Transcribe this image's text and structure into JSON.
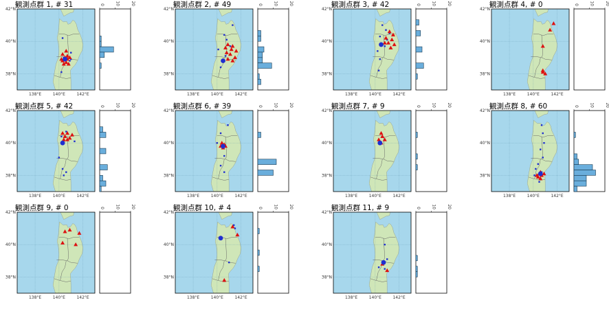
{
  "colors": {
    "ocean": "#a7d7ec",
    "land": "#cfe6b8",
    "border": "#666666",
    "station": "#1f2fd0",
    "event": "#dd1111",
    "hist_fill": "#6aaedc",
    "hist_edge": "#17384f"
  },
  "map_axes": {
    "lon_ticks": [
      "138°E",
      "140°E",
      "142°E"
    ],
    "lat_ticks": [
      "42°N",
      "40°N",
      "38°N"
    ]
  },
  "hist_axis": {
    "ticks": [
      "0",
      "10",
      "20"
    ],
    "range": [
      0,
      20
    ]
  },
  "chart_data": [
    {
      "type": "map+histogram",
      "title": "観測点群 1, # 31",
      "stations": [
        [
          140.3,
          40.2
        ],
        [
          140.2,
          38.1
        ],
        [
          140.6,
          39.4
        ],
        [
          140.9,
          38.8
        ],
        [
          140.4,
          39.0
        ],
        [
          141.0,
          39.3
        ],
        [
          141.0,
          38.9
        ]
      ],
      "events": [
        [
          140.3,
          39.2
        ],
        [
          140.5,
          39.0
        ],
        [
          140.7,
          39.1
        ],
        [
          140.2,
          38.9
        ],
        [
          140.6,
          38.7
        ],
        [
          140.9,
          39.0
        ],
        [
          140.3,
          38.8
        ],
        [
          140.6,
          39.4
        ],
        [
          140.8,
          38.6
        ],
        [
          140.4,
          38.6
        ],
        [
          140.7,
          38.9
        ]
      ],
      "centroid": [
        140.5,
        38.9
      ],
      "hist_bins": [
        0,
        0,
        0,
        0,
        0,
        1,
        1,
        9,
        3,
        0,
        1,
        0,
        0,
        0,
        0
      ]
    },
    {
      "type": "map+histogram",
      "title": "観測点群 2, # 49",
      "stations": [
        [
          141.3,
          41.0
        ],
        [
          140.6,
          40.4
        ],
        [
          140.8,
          40.1
        ],
        [
          140.1,
          39.5
        ],
        [
          140.7,
          39.1
        ],
        [
          140.3,
          38.4
        ],
        [
          141.1,
          39.7
        ]
      ],
      "events": [
        [
          140.9,
          39.8
        ],
        [
          141.3,
          39.7
        ],
        [
          141.6,
          39.4
        ],
        [
          140.8,
          39.3
        ],
        [
          141.1,
          39.2
        ],
        [
          141.5,
          39.0
        ],
        [
          140.9,
          38.9
        ],
        [
          141.3,
          38.8
        ],
        [
          140.7,
          39.6
        ],
        [
          141.2,
          39.5
        ]
      ],
      "centroid": [
        140.5,
        38.8
      ],
      "hist_bins": [
        0,
        0,
        0,
        0,
        2,
        2,
        0,
        4,
        3,
        3,
        9,
        0,
        1,
        2,
        0
      ]
    },
    {
      "type": "map+histogram",
      "title": "観測点群 3, # 42",
      "stations": [
        [
          140.6,
          41.0
        ],
        [
          140.9,
          40.7
        ],
        [
          141.2,
          40.5
        ],
        [
          140.4,
          40.3
        ],
        [
          141.0,
          40.1
        ],
        [
          140.2,
          39.4
        ],
        [
          140.4,
          38.9
        ],
        [
          140.3,
          38.2
        ],
        [
          140.8,
          39.7
        ]
      ],
      "events": [
        [
          141.2,
          40.6
        ],
        [
          141.5,
          40.4
        ],
        [
          140.9,
          40.2
        ],
        [
          141.4,
          40.1
        ],
        [
          141.6,
          39.8
        ],
        [
          141.1,
          39.9
        ],
        [
          140.8,
          39.9
        ],
        [
          141.3,
          39.6
        ]
      ],
      "centroid": [
        140.5,
        39.8
      ],
      "hist_bins": [
        0,
        0,
        2,
        0,
        3,
        0,
        0,
        4,
        0,
        0,
        5,
        0,
        1,
        0,
        0
      ]
    },
    {
      "type": "map+histogram",
      "title": "観測点群 4, # 0",
      "stations": [],
      "events": [
        [
          141.7,
          41.1
        ],
        [
          141.4,
          40.7
        ],
        [
          140.8,
          39.7
        ],
        [
          140.8,
          38.2
        ],
        [
          141.0,
          38.0
        ],
        [
          140.8,
          38.1
        ]
      ],
      "centroid": null,
      "hist_bins": [
        0,
        0,
        0,
        0,
        0,
        0,
        0,
        0,
        0,
        0,
        0,
        0,
        0,
        0,
        0
      ]
    },
    {
      "type": "map+histogram",
      "title": "観測点群 5, # 42",
      "stations": [
        [
          140.2,
          40.4
        ],
        [
          140.6,
          40.7
        ],
        [
          141.3,
          40.1
        ],
        [
          140.0,
          39.1
        ],
        [
          140.3,
          38.4
        ],
        [
          140.4,
          38.0
        ],
        [
          140.6,
          38.2
        ]
      ],
      "events": [
        [
          140.3,
          40.6
        ],
        [
          140.7,
          40.6
        ],
        [
          140.5,
          40.4
        ],
        [
          140.9,
          40.3
        ],
        [
          141.1,
          40.5
        ],
        [
          140.4,
          40.2
        ],
        [
          140.7,
          40.2
        ]
      ],
      "centroid": [
        140.3,
        40.0
      ],
      "hist_bins": [
        0,
        0,
        0,
        2,
        4,
        0,
        0,
        4,
        0,
        0,
        5,
        0,
        2,
        4,
        1
      ]
    },
    {
      "type": "map+histogram",
      "title": "観測点群 6, # 39",
      "stations": [
        [
          140.3,
          40.6
        ],
        [
          140.0,
          40.0
        ],
        [
          140.6,
          39.2
        ],
        [
          140.3,
          38.6
        ],
        [
          140.6,
          38.2
        ],
        [
          140.9,
          41.1
        ]
      ],
      "events": [
        [
          140.4,
          40.0
        ],
        [
          140.6,
          39.9
        ],
        [
          140.3,
          39.8
        ],
        [
          140.5,
          39.7
        ],
        [
          140.7,
          39.8
        ]
      ],
      "centroid": [
        140.5,
        39.8
      ],
      "hist_bins": [
        0,
        0,
        0,
        0,
        2,
        0,
        0,
        0,
        0,
        12,
        0,
        10,
        0,
        0,
        0
      ]
    },
    {
      "type": "map+histogram",
      "title": "観測点群 7, # 9",
      "stations": [],
      "events": [
        [
          140.5,
          40.6
        ],
        [
          140.6,
          40.4
        ],
        [
          140.3,
          40.2
        ],
        [
          140.8,
          40.2
        ],
        [
          140.5,
          40.0
        ]
      ],
      "centroid": [
        140.4,
        40.0
      ],
      "hist_bins": [
        0,
        0,
        0,
        0,
        1,
        0,
        0,
        0,
        1,
        0,
        1,
        0,
        0,
        0,
        0
      ]
    },
    {
      "type": "map+histogram",
      "title": "観測点群 8, # 60",
      "stations": [
        [
          140.7,
          41.1
        ],
        [
          140.8,
          40.6
        ],
        [
          140.9,
          40.0
        ],
        [
          140.6,
          39.6
        ],
        [
          140.8,
          39.1
        ],
        [
          140.4,
          38.7
        ],
        [
          140.2,
          38.4
        ],
        [
          140.7,
          38.2
        ],
        [
          140.1,
          38.0
        ],
        [
          140.5,
          37.6
        ]
      ],
      "events": [
        [
          140.3,
          38.0
        ],
        [
          140.5,
          38.1
        ],
        [
          140.6,
          38.2
        ],
        [
          140.4,
          37.9
        ],
        [
          140.7,
          38.0
        ],
        [
          140.9,
          38.1
        ],
        [
          140.6,
          37.8
        ]
      ],
      "centroid": [
        140.6,
        38.1
      ],
      "hist_bins": [
        0,
        0,
        0,
        0,
        1,
        0,
        0,
        0,
        2,
        3,
        12,
        14,
        8,
        8,
        2
      ]
    },
    {
      "type": "map+histogram",
      "title": "観測点群 9, # 0",
      "stations": [],
      "events": [
        [
          140.9,
          40.9
        ],
        [
          140.5,
          40.8
        ],
        [
          141.7,
          40.7
        ],
        [
          140.3,
          40.1
        ],
        [
          141.4,
          40.0
        ]
      ],
      "centroid": null,
      "hist_bins": [
        0,
        0,
        0,
        0,
        0,
        0,
        0,
        0,
        0,
        0,
        0,
        0,
        0,
        0,
        0
      ]
    },
    {
      "type": "map+histogram",
      "title": "観測点群 10, # 4",
      "stations": [
        [
          141.4,
          41.2
        ],
        [
          141.5,
          41.0
        ],
        [
          141.0,
          38.9
        ]
      ],
      "events": [
        [
          141.3,
          41.1
        ],
        [
          141.7,
          40.6
        ],
        [
          140.6,
          37.8
        ]
      ],
      "centroid": [
        140.3,
        40.4
      ],
      "hist_bins": [
        0,
        0,
        0,
        1,
        0,
        0,
        0,
        1,
        0,
        0,
        1,
        0,
        0,
        0,
        0
      ]
    },
    {
      "type": "map+histogram",
      "title": "観測点群 11, # 9",
      "stations": [
        [
          140.8,
          40.0
        ],
        [
          141.0,
          39.1
        ],
        [
          140.8,
          38.5
        ],
        [
          140.3,
          38.6
        ]
      ],
      "events": [
        [
          141.0,
          38.4
        ],
        [
          140.6,
          38.8
        ]
      ],
      "centroid": [
        140.7,
        38.9
      ],
      "hist_bins": [
        0,
        0,
        0,
        0,
        0,
        0,
        0,
        0,
        1,
        0,
        1,
        1,
        0,
        0,
        0
      ]
    }
  ]
}
